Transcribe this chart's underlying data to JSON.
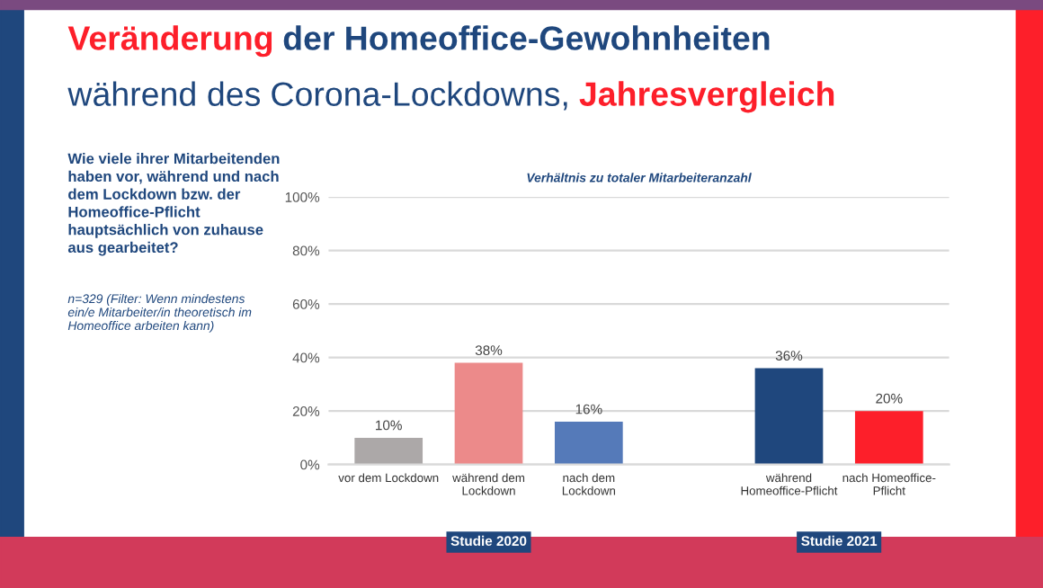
{
  "chart_data": {
    "type": "bar",
    "title": "Veränderung der Homeoffice-Gewohnheiten\nwährend des Corona-Lockdowns, Jahresvergleich",
    "subtitle": "Verhältnis zu totaler Mitarbeiteranzahl",
    "categories": [
      "vor dem Lockdown",
      "während dem\nLockdown",
      "nach dem\nLockdown",
      null,
      "während\nHomeoffice-Pflicht",
      "nach Homeoffice-\nPflicht"
    ],
    "values": [
      10,
      38,
      16,
      null,
      36,
      20
    ],
    "value_labels": [
      "10%",
      "38%",
      "16%",
      null,
      "36%",
      "20%"
    ],
    "colors": [
      "#aca8a8",
      "#ec8a8a",
      "#557ab9",
      "#ffffff",
      "#1f477d",
      "#fd1f2a"
    ],
    "ylim": [
      0,
      100
    ],
    "yticks": [
      {
        "value": 0,
        "label": "0%"
      },
      {
        "value": 20,
        "label": "20%"
      },
      {
        "value": 40,
        "label": "40%"
      },
      {
        "value": 60,
        "label": "60%"
      },
      {
        "value": 80,
        "label": "80%"
      },
      {
        "value": 100,
        "label": "100%"
      }
    ],
    "grid": "y",
    "annotations": [
      "Wie viele ihrer Mitarbeitenden\nhaben vor, während und nach\ndem Lockdown bzw. der\nHomeoffice-Pflicht\nhauptsächlich von zuhause\naus gearbeitet?",
      "n=329 (Filter: Wenn mindestens\nein/e Mitarbeiter/in theoretisch im\nHomeoffice arbeiten kann)",
      "Studie 2020",
      "Studie 2021"
    ]
  }
}
